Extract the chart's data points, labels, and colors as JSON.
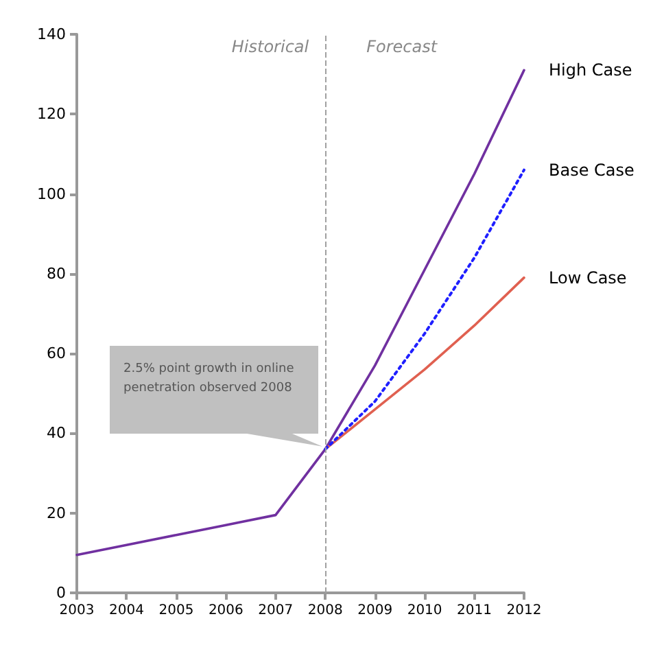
{
  "chart_data": {
    "type": "line",
    "x": [
      2003,
      2004,
      2005,
      2006,
      2007,
      2008,
      2009,
      2010,
      2011,
      2012
    ],
    "series": [
      {
        "name": "High Case",
        "color": "#7030a0",
        "values": [
          9.5,
          12,
          14.5,
          17,
          19.5,
          36,
          57,
          81,
          105,
          131
        ]
      },
      {
        "name": "Base Case",
        "color": "#1f1fff",
        "line_style": "dotted",
        "values": [
          null,
          null,
          null,
          null,
          null,
          36,
          48,
          65,
          84,
          106
        ]
      },
      {
        "name": "Low Case",
        "color": "#e06050",
        "values": [
          null,
          null,
          null,
          null,
          null,
          36,
          46,
          56,
          67,
          79
        ]
      }
    ],
    "xlim": [
      2003,
      2012
    ],
    "xticks": [
      2003,
      2004,
      2005,
      2006,
      2007,
      2008,
      2009,
      2010,
      2011,
      2012
    ],
    "ylim": [
      0,
      140
    ],
    "yticks": [
      0,
      20,
      40,
      60,
      80,
      100,
      120,
      140
    ],
    "grid": false,
    "marker": "none",
    "line_style": "solid",
    "ref_lines": [
      {
        "axis": "x",
        "value": 2008,
        "color": "#a0a0a0",
        "line_style": "dashed"
      }
    ],
    "annotations": [
      "Historical",
      "Forecast",
      "2.5% point growth in online penetration observed 2008"
    ]
  }
}
